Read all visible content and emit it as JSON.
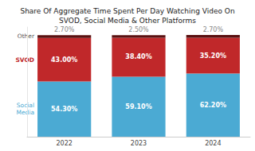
{
  "chart_data": {
    "type": "bar",
    "title": "Share Of Aggregate Time Spent Per Day Watching Video On\nSVOD, Social Media & Other Platforms",
    "categories": [
      "2022",
      "2023",
      "2024"
    ],
    "series": [
      {
        "name": "Social\nMedia",
        "color": "#4baad3",
        "values": [
          54.3,
          59.1,
          62.2
        ],
        "value_labels": [
          "54.30%",
          "59.10%",
          "62.20%"
        ]
      },
      {
        "name": "SVOD",
        "color": "#c0282a",
        "values": [
          43.0,
          38.4,
          35.2
        ],
        "value_labels": [
          "43.00%",
          "38.40%",
          "35.20%"
        ]
      },
      {
        "name": "Other",
        "color": "#5a1010",
        "values": [
          2.7,
          2.5,
          2.7
        ],
        "value_labels": [
          "2.70%",
          "2.50%",
          "2.70%"
        ]
      }
    ],
    "ylim": [
      0,
      108
    ],
    "stacked": true,
    "data_labels": true,
    "tick_labels": "x",
    "grid": false
  }
}
